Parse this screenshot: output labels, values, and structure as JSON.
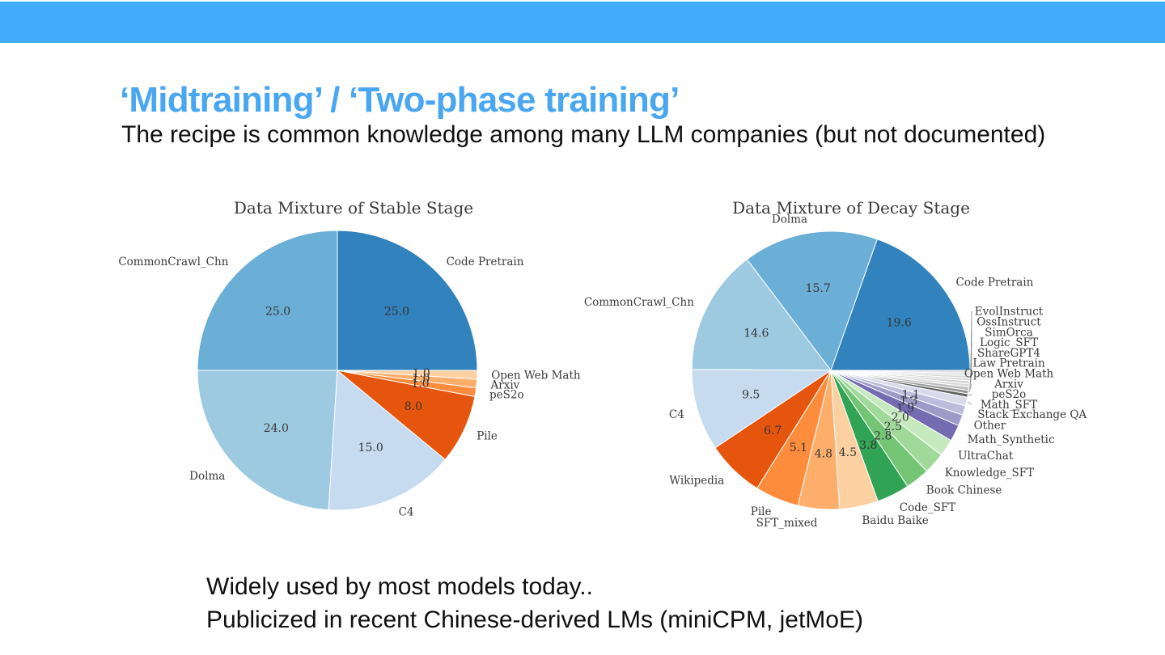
{
  "slide": {
    "title": "‘Midtraining’ / ‘Two-phase training’",
    "subtitle": "The recipe is common knowledge among many LLM companies (but not documented)",
    "footer_line1": "Widely used by most models today..",
    "footer_line2": "Publicized in recent Chinese-derived LMs (miniCPM, jetMoE)",
    "accent_bar_color": "#40acfb",
    "title_color": "#49a7f1"
  },
  "chart_data": [
    {
      "type": "pie",
      "title": "Data Mixture of Stable Stage",
      "unit": "percent",
      "counterclockwise": true,
      "start_angle_deg": 0,
      "pct_label_distance": 0.6,
      "label_distance": 1.1,
      "min_pct_label": 0,
      "slices": [
        {
          "label": "Code Pretrain",
          "value": 25.0,
          "color": "#3182bd"
        },
        {
          "label": "CommonCrawl_Chn",
          "value": 25.0,
          "color": "#6baed6"
        },
        {
          "label": "Dolma",
          "value": 24.0,
          "color": "#9ecae1"
        },
        {
          "label": "C4",
          "value": 15.0,
          "color": "#c6dbef"
        },
        {
          "label": "Pile",
          "value": 8.0,
          "color": "#e6550d"
        },
        {
          "label": "peS2o",
          "value": 1.0,
          "color": "#fd8d3c"
        },
        {
          "label": "Arxiv",
          "value": 1.0,
          "color": "#fdae6b"
        },
        {
          "label": "Open Web Math",
          "value": 1.0,
          "color": "#fdd0a2"
        }
      ]
    },
    {
      "type": "pie",
      "title": "Data Mixture of Decay Stage",
      "unit": "percent",
      "counterclockwise": true,
      "start_angle_deg": 0,
      "pct_label_distance": 0.6,
      "label_distance": 1.1,
      "min_pct_label": 1.1,
      "slices": [
        {
          "label": "Code Pretrain",
          "value": 19.6,
          "color": "#3182bd"
        },
        {
          "label": "Dolma",
          "value": 15.7,
          "color": "#6baed6"
        },
        {
          "label": "CommonCrawl_Chn",
          "value": 14.6,
          "color": "#9ecae1"
        },
        {
          "label": "C4",
          "value": 9.5,
          "color": "#c6dbef"
        },
        {
          "label": "Wikipedia",
          "value": 6.7,
          "color": "#e6550d"
        },
        {
          "label": "Pile",
          "value": 5.1,
          "color": "#fd8d3c"
        },
        {
          "label": "SFT_mixed",
          "value": 4.8,
          "color": "#fdae6b"
        },
        {
          "label": "Baidu Baike",
          "value": 4.5,
          "color": "#fdd0a2"
        },
        {
          "label": "Code_SFT",
          "value": 3.8,
          "color": "#31a354"
        },
        {
          "label": "Book Chinese",
          "value": 2.8,
          "color": "#74c476"
        },
        {
          "label": "Knowledge_SFT",
          "value": 2.5,
          "color": "#a1d99b"
        },
        {
          "label": "UltraChat",
          "value": 2.0,
          "color": "#c7e9c0"
        },
        {
          "label": "Math_Synthetic",
          "value": 1.9,
          "color": "#756bb1"
        },
        {
          "label": "Other",
          "value": 1.3,
          "color": "#9e9ac8"
        },
        {
          "label": "Stack Exchange QA",
          "value": 1.1,
          "color": "#bcbddc"
        },
        {
          "label": "Math_SFT",
          "value": 1.0,
          "color": "#dadaeb"
        },
        {
          "label": "peS2o",
          "value": 0.4,
          "color": "#636363"
        },
        {
          "label": "Arxiv",
          "value": 0.4,
          "color": "#969696"
        },
        {
          "label": "Open Web Math",
          "value": 0.4,
          "color": "#bdbdbd"
        },
        {
          "label": "Law Pretrain",
          "value": 0.35,
          "color": "#d9d9d9"
        },
        {
          "label": "ShareGPT4",
          "value": 0.35,
          "color": "#d4d4d4"
        },
        {
          "label": "Logic_SFT",
          "value": 0.3,
          "color": "#d7d7d7"
        },
        {
          "label": "SimOrca",
          "value": 0.3,
          "color": "#dadada"
        },
        {
          "label": "OssInstruct",
          "value": 0.3,
          "color": "#dddddd"
        },
        {
          "label": "EvolInstruct",
          "value": 0.3,
          "color": "#e0e0e0"
        }
      ],
      "stacked_labels": [
        "EvolInstruct",
        "OssInstruct",
        "SimOrca",
        "Logic_SFT",
        "ShareGPT4",
        "Law Pretrain",
        "Open Web Math",
        "Arxiv",
        "peS2o",
        "Math_SFT"
      ],
      "legend_position": "around-pie",
      "grid": false
    }
  ]
}
